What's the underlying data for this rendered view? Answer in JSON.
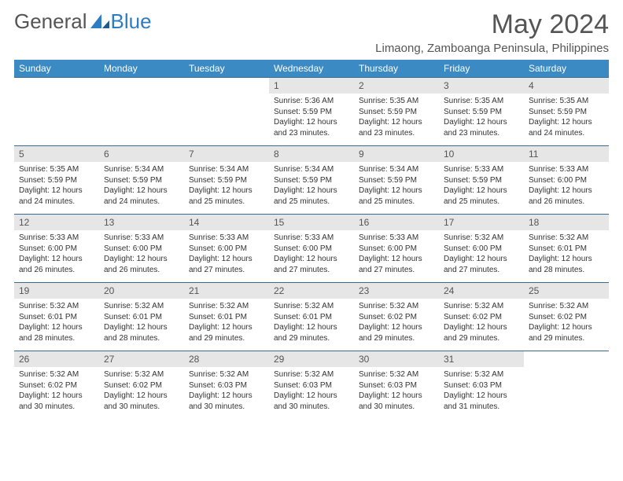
{
  "brand": {
    "part1": "General",
    "part2": "Blue"
  },
  "title": "May 2024",
  "location": "Limaong, Zamboanga Peninsula, Philippines",
  "colors": {
    "header_bg": "#3b8ac4",
    "header_text": "#ffffff",
    "daynum_bg": "#e6e6e6",
    "border": "#3b6a8f",
    "brand_blue": "#2e7cc1",
    "text_muted": "#555555"
  },
  "weekdays": [
    "Sunday",
    "Monday",
    "Tuesday",
    "Wednesday",
    "Thursday",
    "Friday",
    "Saturday"
  ],
  "weeks": [
    [
      null,
      null,
      null,
      {
        "n": "1",
        "sr": "Sunrise: 5:36 AM",
        "ss": "Sunset: 5:59 PM",
        "dl": "Daylight: 12 hours and 23 minutes."
      },
      {
        "n": "2",
        "sr": "Sunrise: 5:35 AM",
        "ss": "Sunset: 5:59 PM",
        "dl": "Daylight: 12 hours and 23 minutes."
      },
      {
        "n": "3",
        "sr": "Sunrise: 5:35 AM",
        "ss": "Sunset: 5:59 PM",
        "dl": "Daylight: 12 hours and 23 minutes."
      },
      {
        "n": "4",
        "sr": "Sunrise: 5:35 AM",
        "ss": "Sunset: 5:59 PM",
        "dl": "Daylight: 12 hours and 24 minutes."
      }
    ],
    [
      {
        "n": "5",
        "sr": "Sunrise: 5:35 AM",
        "ss": "Sunset: 5:59 PM",
        "dl": "Daylight: 12 hours and 24 minutes."
      },
      {
        "n": "6",
        "sr": "Sunrise: 5:34 AM",
        "ss": "Sunset: 5:59 PM",
        "dl": "Daylight: 12 hours and 24 minutes."
      },
      {
        "n": "7",
        "sr": "Sunrise: 5:34 AM",
        "ss": "Sunset: 5:59 PM",
        "dl": "Daylight: 12 hours and 25 minutes."
      },
      {
        "n": "8",
        "sr": "Sunrise: 5:34 AM",
        "ss": "Sunset: 5:59 PM",
        "dl": "Daylight: 12 hours and 25 minutes."
      },
      {
        "n": "9",
        "sr": "Sunrise: 5:34 AM",
        "ss": "Sunset: 5:59 PM",
        "dl": "Daylight: 12 hours and 25 minutes."
      },
      {
        "n": "10",
        "sr": "Sunrise: 5:33 AM",
        "ss": "Sunset: 5:59 PM",
        "dl": "Daylight: 12 hours and 25 minutes."
      },
      {
        "n": "11",
        "sr": "Sunrise: 5:33 AM",
        "ss": "Sunset: 6:00 PM",
        "dl": "Daylight: 12 hours and 26 minutes."
      }
    ],
    [
      {
        "n": "12",
        "sr": "Sunrise: 5:33 AM",
        "ss": "Sunset: 6:00 PM",
        "dl": "Daylight: 12 hours and 26 minutes."
      },
      {
        "n": "13",
        "sr": "Sunrise: 5:33 AM",
        "ss": "Sunset: 6:00 PM",
        "dl": "Daylight: 12 hours and 26 minutes."
      },
      {
        "n": "14",
        "sr": "Sunrise: 5:33 AM",
        "ss": "Sunset: 6:00 PM",
        "dl": "Daylight: 12 hours and 27 minutes."
      },
      {
        "n": "15",
        "sr": "Sunrise: 5:33 AM",
        "ss": "Sunset: 6:00 PM",
        "dl": "Daylight: 12 hours and 27 minutes."
      },
      {
        "n": "16",
        "sr": "Sunrise: 5:33 AM",
        "ss": "Sunset: 6:00 PM",
        "dl": "Daylight: 12 hours and 27 minutes."
      },
      {
        "n": "17",
        "sr": "Sunrise: 5:32 AM",
        "ss": "Sunset: 6:00 PM",
        "dl": "Daylight: 12 hours and 27 minutes."
      },
      {
        "n": "18",
        "sr": "Sunrise: 5:32 AM",
        "ss": "Sunset: 6:01 PM",
        "dl": "Daylight: 12 hours and 28 minutes."
      }
    ],
    [
      {
        "n": "19",
        "sr": "Sunrise: 5:32 AM",
        "ss": "Sunset: 6:01 PM",
        "dl": "Daylight: 12 hours and 28 minutes."
      },
      {
        "n": "20",
        "sr": "Sunrise: 5:32 AM",
        "ss": "Sunset: 6:01 PM",
        "dl": "Daylight: 12 hours and 28 minutes."
      },
      {
        "n": "21",
        "sr": "Sunrise: 5:32 AM",
        "ss": "Sunset: 6:01 PM",
        "dl": "Daylight: 12 hours and 29 minutes."
      },
      {
        "n": "22",
        "sr": "Sunrise: 5:32 AM",
        "ss": "Sunset: 6:01 PM",
        "dl": "Daylight: 12 hours and 29 minutes."
      },
      {
        "n": "23",
        "sr": "Sunrise: 5:32 AM",
        "ss": "Sunset: 6:02 PM",
        "dl": "Daylight: 12 hours and 29 minutes."
      },
      {
        "n": "24",
        "sr": "Sunrise: 5:32 AM",
        "ss": "Sunset: 6:02 PM",
        "dl": "Daylight: 12 hours and 29 minutes."
      },
      {
        "n": "25",
        "sr": "Sunrise: 5:32 AM",
        "ss": "Sunset: 6:02 PM",
        "dl": "Daylight: 12 hours and 29 minutes."
      }
    ],
    [
      {
        "n": "26",
        "sr": "Sunrise: 5:32 AM",
        "ss": "Sunset: 6:02 PM",
        "dl": "Daylight: 12 hours and 30 minutes."
      },
      {
        "n": "27",
        "sr": "Sunrise: 5:32 AM",
        "ss": "Sunset: 6:02 PM",
        "dl": "Daylight: 12 hours and 30 minutes."
      },
      {
        "n": "28",
        "sr": "Sunrise: 5:32 AM",
        "ss": "Sunset: 6:03 PM",
        "dl": "Daylight: 12 hours and 30 minutes."
      },
      {
        "n": "29",
        "sr": "Sunrise: 5:32 AM",
        "ss": "Sunset: 6:03 PM",
        "dl": "Daylight: 12 hours and 30 minutes."
      },
      {
        "n": "30",
        "sr": "Sunrise: 5:32 AM",
        "ss": "Sunset: 6:03 PM",
        "dl": "Daylight: 12 hours and 30 minutes."
      },
      {
        "n": "31",
        "sr": "Sunrise: 5:32 AM",
        "ss": "Sunset: 6:03 PM",
        "dl": "Daylight: 12 hours and 31 minutes."
      },
      null
    ]
  ]
}
